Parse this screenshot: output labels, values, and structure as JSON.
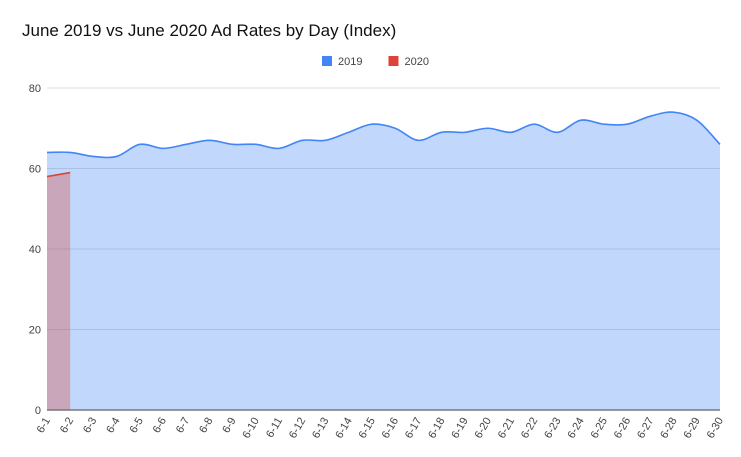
{
  "chart_data": {
    "type": "area",
    "title": "June 2019 vs June 2020 Ad Rates by Day (Index)",
    "categories": [
      "6-1",
      "6-2",
      "6-3",
      "6-4",
      "6-5",
      "6-6",
      "6-7",
      "6-8",
      "6-9",
      "6-10",
      "6-11",
      "6-12",
      "6-13",
      "6-14",
      "6-15",
      "6-16",
      "6-17",
      "6-18",
      "6-19",
      "6-20",
      "6-21",
      "6-22",
      "6-23",
      "6-24",
      "6-25",
      "6-26",
      "6-27",
      "6-28",
      "6-29",
      "6-30"
    ],
    "series": [
      {
        "name": "2019",
        "color": "#4285f4",
        "values": [
          64,
          64,
          63,
          63,
          66,
          65,
          66,
          67,
          66,
          66,
          65,
          67,
          67,
          69,
          71,
          70,
          67,
          69,
          69,
          70,
          69,
          71,
          69,
          72,
          71,
          71,
          73,
          74,
          72,
          66
        ]
      },
      {
        "name": "2020",
        "color": "#db4437",
        "values": [
          58,
          59,
          null,
          null,
          null,
          null,
          null,
          null,
          null,
          null,
          null,
          null,
          null,
          null,
          null,
          null,
          null,
          null,
          null,
          null,
          null,
          null,
          null,
          null,
          null,
          null,
          null,
          null,
          null,
          null
        ]
      }
    ],
    "ylim": [
      0,
      80
    ],
    "yticks": [
      0,
      20,
      40,
      60,
      80
    ],
    "grid": true,
    "legend": "top"
  }
}
